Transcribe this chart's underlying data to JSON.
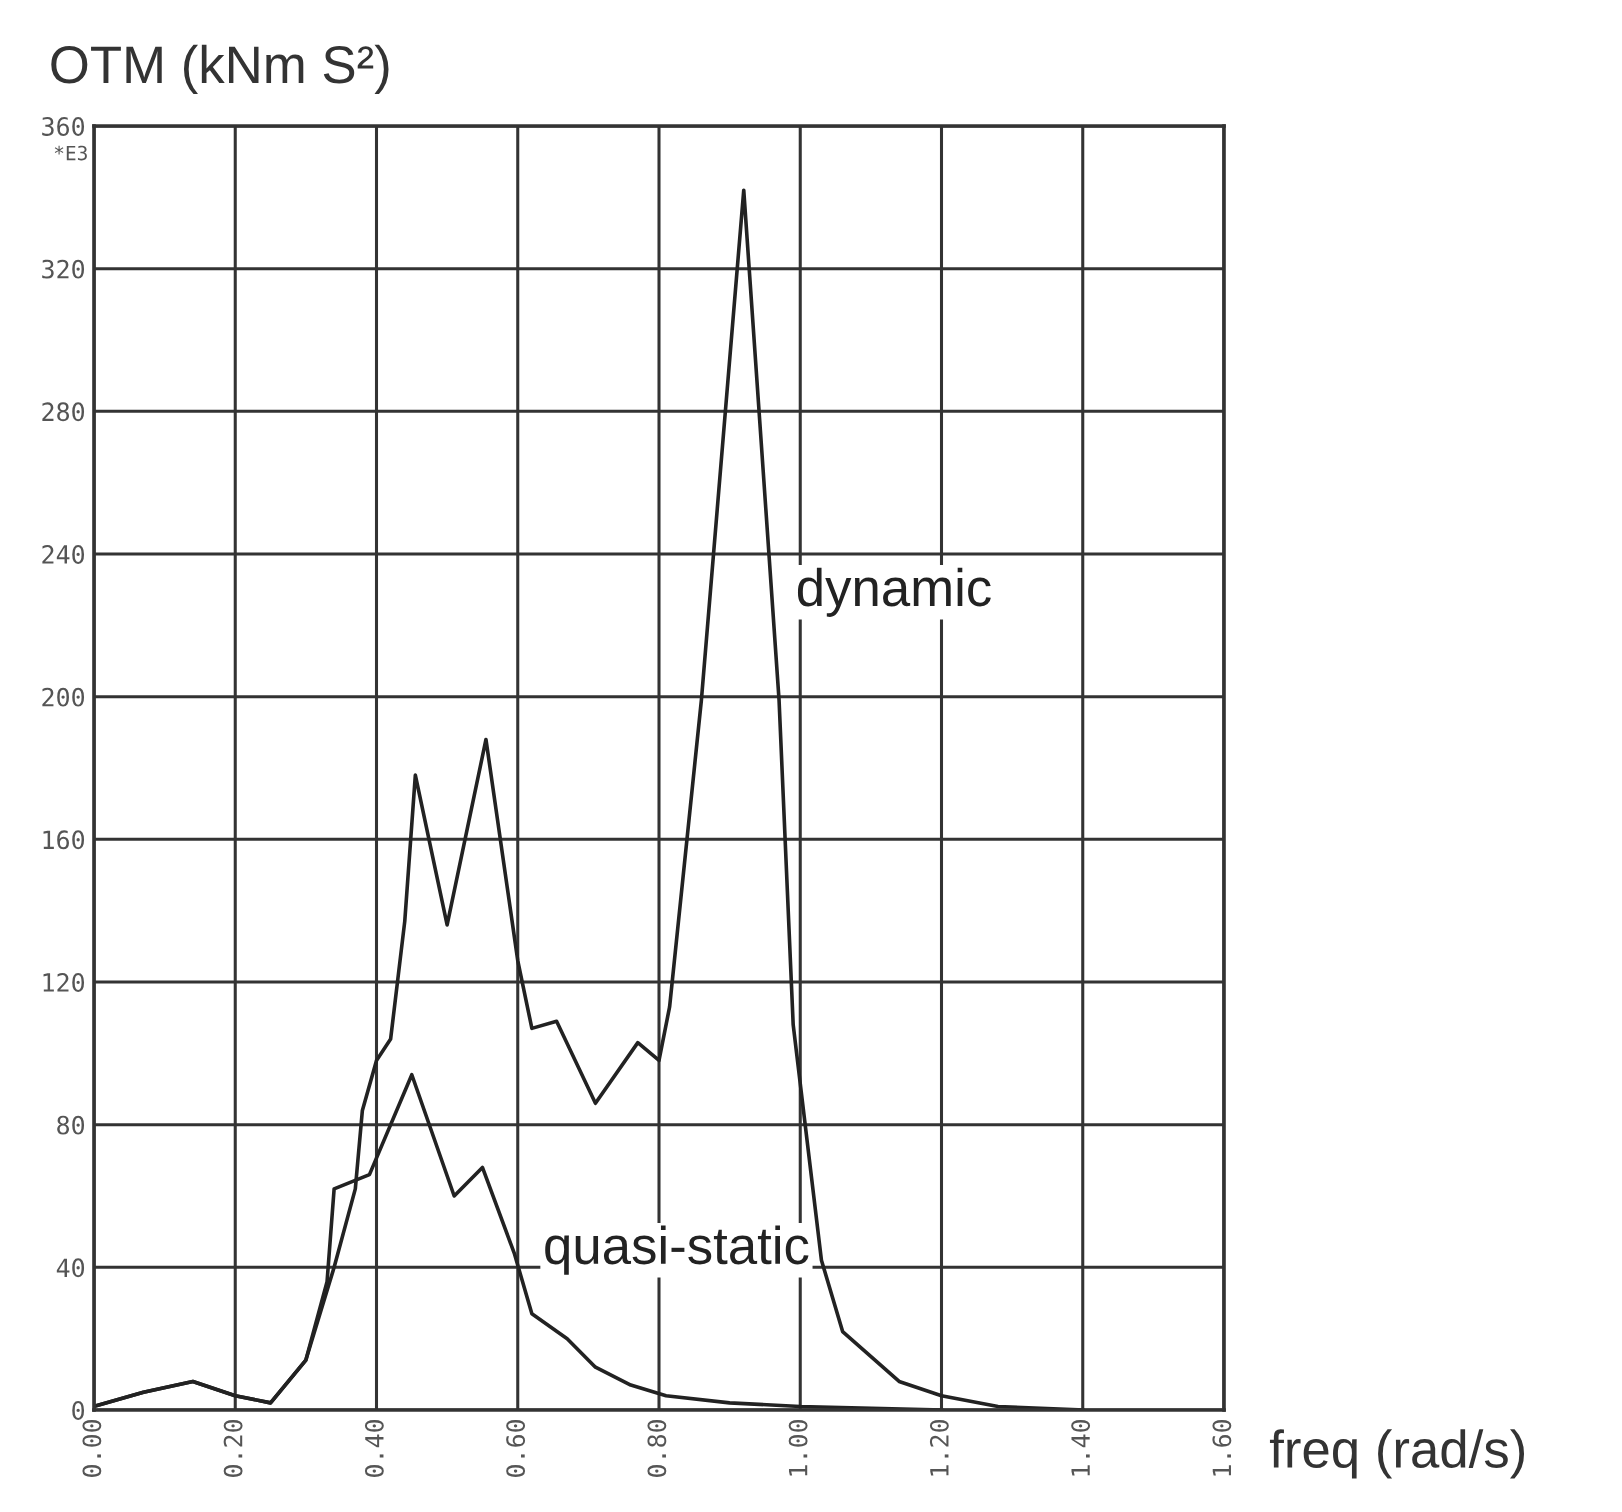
{
  "chart_data": {
    "type": "line",
    "ylabel": "OTM (kNm S²)",
    "xlabel": "freq (rad/s)",
    "annotations": [
      "*E3"
    ],
    "xlim": [
      0,
      1.6
    ],
    "ylim": [
      0,
      360
    ],
    "xticks": [
      {
        "value": 0,
        "label": "0.00"
      },
      {
        "value": 0.2,
        "label": "0.20"
      },
      {
        "value": 0.4,
        "label": "0.40"
      },
      {
        "value": 0.6,
        "label": "0.60"
      },
      {
        "value": 0.8,
        "label": "0.80"
      },
      {
        "value": 1.0,
        "label": "1.00"
      },
      {
        "value": 1.2,
        "label": "1.20"
      },
      {
        "value": 1.4,
        "label": "1.40"
      },
      {
        "value": 1.6,
        "label": "1.60"
      }
    ],
    "yticks": [
      0,
      40,
      80,
      120,
      160,
      200,
      240,
      280,
      320,
      360
    ],
    "grid": true,
    "line_style": "solid",
    "series": [
      {
        "name": "dynamic",
        "color": "#222222",
        "x": [
          0,
          0.07,
          0.14,
          0.2,
          0.25,
          0.3,
          0.34,
          0.37,
          0.38,
          0.4,
          0.42,
          0.44,
          0.455,
          0.5,
          0.555,
          0.6,
          0.62,
          0.655,
          0.71,
          0.77,
          0.8,
          0.815,
          0.86,
          0.92,
          0.97,
          0.99,
          1.03,
          1.06,
          1.14,
          1.2,
          1.28,
          1.4
        ],
        "values": [
          1,
          5,
          8,
          4,
          2,
          14,
          40,
          62,
          84,
          98,
          104,
          137,
          178,
          136,
          188,
          126,
          107,
          109,
          86,
          103,
          98,
          113,
          199,
          342,
          199,
          108,
          42,
          22,
          8,
          4,
          1,
          0
        ]
      },
      {
        "name": "quasi-static",
        "color": "#222222",
        "x": [
          0,
          0.07,
          0.14,
          0.2,
          0.25,
          0.3,
          0.33,
          0.34,
          0.39,
          0.45,
          0.51,
          0.55,
          0.595,
          0.62,
          0.67,
          0.71,
          0.76,
          0.81,
          0.9,
          1.0,
          1.2
        ],
        "values": [
          1,
          5,
          8,
          4,
          2,
          14,
          36,
          62,
          66,
          94,
          60,
          68,
          44,
          27,
          20,
          12,
          7,
          4,
          2,
          1,
          0
        ]
      }
    ]
  }
}
